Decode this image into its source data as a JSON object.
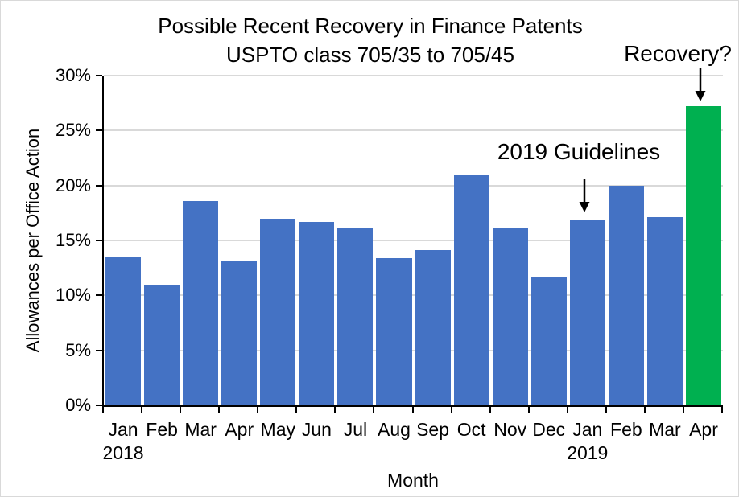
{
  "chart_data": {
    "type": "bar",
    "title": "Possible Recent Recovery in Finance Patents",
    "subtitle": "USPTO class 705/35 to 705/45",
    "xlabel": "Month",
    "ylabel": "Allowances per Office Action",
    "ylim": [
      0,
      30
    ],
    "ytick_step": 5,
    "ytick_labels": [
      "0%",
      "5%",
      "10%",
      "15%",
      "20%",
      "25%",
      "30%"
    ],
    "categories": [
      "Jan",
      "Feb",
      "Mar",
      "Apr",
      "May",
      "Jun",
      "Jul",
      "Aug",
      "Sep",
      "Oct",
      "Nov",
      "Dec",
      "Jan",
      "Feb",
      "Mar",
      "Apr"
    ],
    "year_labels": [
      {
        "text": "2018",
        "slot": 0
      },
      {
        "text": "2019",
        "slot": 12
      }
    ],
    "values": [
      13.5,
      10.9,
      18.6,
      13.2,
      17.0,
      16.7,
      16.2,
      13.4,
      14.1,
      20.9,
      16.2,
      11.7,
      16.8,
      20.0,
      17.1,
      27.2
    ],
    "highlight_index": 15,
    "colors": {
      "bar_default": "#4472C4",
      "bar_highlight": "#00B050",
      "gridline": "#D9D9D9",
      "axis": "#000000",
      "text": "#000000"
    },
    "grid": true,
    "legend": false,
    "annotations": [
      {
        "text": "2019 Guidelines",
        "points_to": "Jan 2019 bar"
      },
      {
        "text": "Recovery?",
        "points_to": "Apr 2019 bar"
      }
    ]
  }
}
